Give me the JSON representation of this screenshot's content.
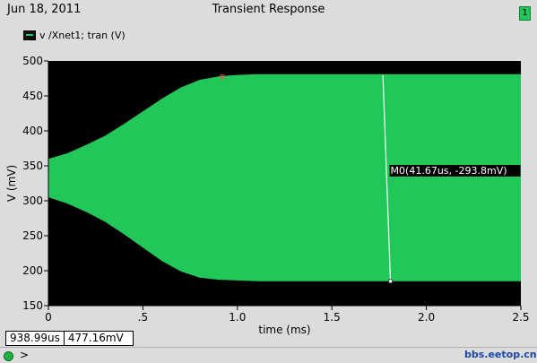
{
  "header": {
    "date": "Jun 18, 2011",
    "title": "Transient Response",
    "badge": "1"
  },
  "legend": {
    "label": "v /Xnet1; tran (V)"
  },
  "readout": {
    "x": "938.99us",
    "y": "477.16mV"
  },
  "status": {
    "prompt": ">"
  },
  "watermark": "bbs.eetop.cn",
  "colors": {
    "background": "#000000",
    "trace": "#22c75a",
    "frame": "#dcdcdc",
    "cursor": "#ffffff"
  },
  "chart_data": {
    "type": "area",
    "title": "Transient Response",
    "xlabel": "time (ms)",
    "ylabel": "V (mV)",
    "xlim": [
      0,
      2.5
    ],
    "ylim": [
      150,
      500
    ],
    "xticks": [
      0,
      0.5,
      1.0,
      1.5,
      2.0,
      2.5
    ],
    "xtick_labels": [
      "0",
      ".5",
      "1.0",
      "1.5",
      "2.0",
      "2.5"
    ],
    "yticks": [
      150,
      200,
      250,
      300,
      350,
      400,
      450,
      500
    ],
    "grid": false,
    "series": [
      {
        "name": "v /Xnet1; tran (V)",
        "x": [
          0,
          0.1,
          0.2,
          0.3,
          0.4,
          0.5,
          0.6,
          0.7,
          0.8,
          0.9,
          1.0,
          1.1,
          1.5,
          2.0,
          2.5
        ],
        "upper": [
          360,
          368,
          380,
          393,
          410,
          428,
          446,
          462,
          473,
          478,
          480,
          481,
          481,
          481,
          481
        ],
        "lower": [
          305,
          296,
          284,
          270,
          252,
          233,
          214,
          199,
          190,
          187,
          186,
          185,
          185,
          185,
          185
        ]
      }
    ],
    "cursor": {
      "label": "M0(41.67us, -293.8mV)",
      "x_top": 1.77,
      "x_bottom": 1.81,
      "y_top": 480,
      "y_bottom": 185
    },
    "marker": {
      "x": 0.92,
      "y": 477.16
    }
  }
}
